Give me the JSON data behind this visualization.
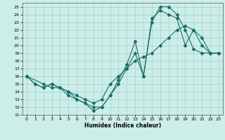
{
  "xlabel": "Humidex (Indice chaleur)",
  "background_color": "#cceee8",
  "grid_color": "#aacccc",
  "line_color": "#1a6e6a",
  "xlim": [
    -0.5,
    23.5
  ],
  "ylim": [
    11,
    25.5
  ],
  "yticks": [
    11,
    12,
    13,
    14,
    15,
    16,
    17,
    18,
    19,
    20,
    21,
    22,
    23,
    24,
    25
  ],
  "xticks": [
    0,
    1,
    2,
    3,
    4,
    5,
    6,
    7,
    8,
    9,
    10,
    11,
    12,
    13,
    14,
    15,
    16,
    17,
    18,
    19,
    20,
    21,
    22,
    23
  ],
  "curve1_x": [
    0,
    1,
    2,
    3,
    4,
    5,
    6,
    7,
    8,
    9,
    10,
    11,
    12,
    13,
    14,
    15,
    16,
    17,
    18,
    19,
    20,
    21,
    22,
    23
  ],
  "curve1_y": [
    16,
    15,
    14.5,
    15,
    14.5,
    14,
    13,
    12.5,
    11.5,
    12,
    13.5,
    15.5,
    17.5,
    20.5,
    16,
    23,
    25,
    25,
    24,
    22,
    19.5,
    19,
    19,
    19
  ],
  "curve2_x": [
    0,
    1,
    2,
    3,
    4,
    5,
    6,
    7,
    8,
    9,
    10,
    11,
    12,
    13,
    14,
    15,
    16,
    17,
    18,
    19,
    20,
    21,
    22,
    23
  ],
  "curve2_y": [
    16,
    15,
    14.5,
    15,
    14.5,
    13.5,
    13,
    12.5,
    12,
    12,
    13.5,
    15,
    17,
    19,
    16,
    23.5,
    24.5,
    24,
    23.5,
    20,
    22,
    20,
    19,
    19
  ],
  "curve3_x": [
    0,
    2,
    3,
    4,
    5,
    6,
    7,
    8,
    9,
    10,
    11,
    12,
    13,
    14,
    15,
    16,
    17,
    18,
    19,
    20,
    21,
    22,
    23
  ],
  "curve3_y": [
    16,
    15,
    14.5,
    14.5,
    14,
    13.5,
    13,
    12.5,
    13,
    15,
    16,
    17,
    18,
    18.5,
    19,
    20,
    21,
    22,
    22.5,
    22,
    21,
    19,
    19
  ]
}
